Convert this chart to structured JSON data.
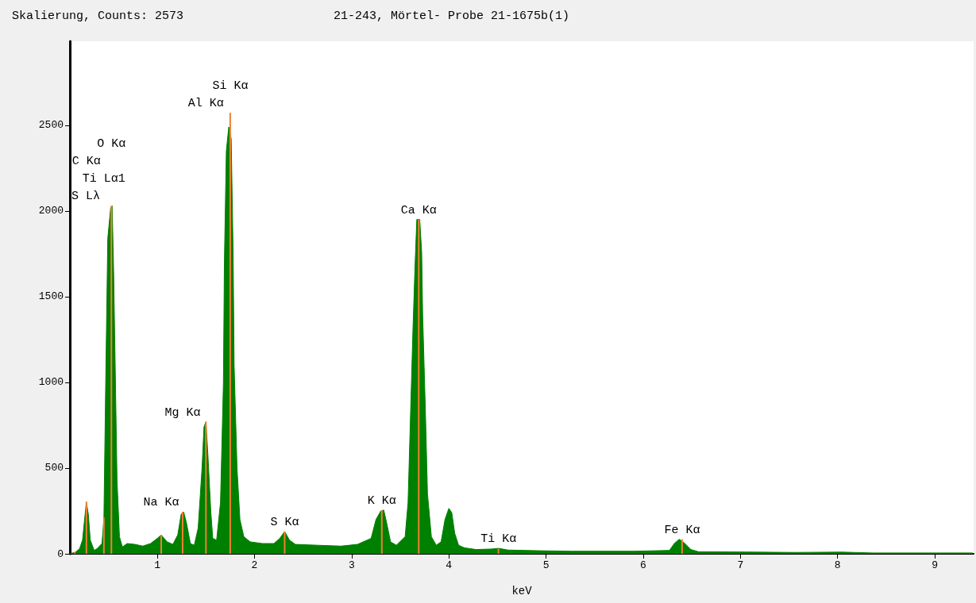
{
  "chart_data": {
    "type": "area",
    "title": "Skalierung, Counts: 2573",
    "subtitle": "21-243, Mörtel- Probe 21-1675b(1)",
    "xlabel": "keV",
    "xlim": [
      0.1,
      9.4
    ],
    "xticks": [
      1,
      2,
      3,
      4,
      5,
      6,
      7,
      8,
      9
    ],
    "ylim": [
      0,
      2990
    ],
    "yticks": [
      0,
      500,
      1000,
      1500,
      2000,
      2500
    ],
    "series": [
      {
        "color": "#008000",
        "x": [
          0.1,
          0.16,
          0.2,
          0.23,
          0.26,
          0.27,
          0.29,
          0.31,
          0.35,
          0.38,
          0.43,
          0.45,
          0.47,
          0.49,
          0.52,
          0.535,
          0.55,
          0.57,
          0.585,
          0.61,
          0.64,
          0.69,
          0.77,
          0.85,
          0.93,
          1.0,
          1.04,
          1.1,
          1.16,
          1.21,
          1.245,
          1.27,
          1.3,
          1.34,
          1.38,
          1.42,
          1.46,
          1.48,
          1.5,
          1.52,
          1.55,
          1.57,
          1.61,
          1.65,
          1.68,
          1.69,
          1.71,
          1.735,
          1.76,
          1.78,
          1.79,
          1.82,
          1.85,
          1.89,
          1.955,
          2.08,
          2.2,
          2.26,
          2.31,
          2.36,
          2.42,
          2.65,
          2.89,
          3.06,
          3.2,
          3.25,
          3.3,
          3.33,
          3.36,
          3.4,
          3.46,
          3.55,
          3.58,
          3.6,
          3.63,
          3.65,
          3.67,
          3.7,
          3.72,
          3.73,
          3.76,
          3.78,
          3.82,
          3.87,
          3.92,
          3.96,
          4.0,
          4.03,
          4.06,
          4.1,
          4.16,
          4.28,
          4.44,
          4.51,
          4.61,
          4.93,
          5.26,
          5.91,
          6.27,
          6.32,
          6.37,
          6.42,
          6.49,
          6.57,
          7.14,
          7.55,
          8.04,
          8.36,
          9.39
        ],
        "values": [
          0,
          10,
          30,
          80,
          250,
          300,
          230,
          80,
          20,
          30,
          60,
          200,
          1050,
          1840,
          2020,
          2030,
          1650,
          960,
          430,
          100,
          40,
          60,
          55,
          45,
          60,
          90,
          110,
          70,
          55,
          110,
          230,
          245,
          180,
          60,
          50,
          150,
          500,
          740,
          770,
          580,
          250,
          90,
          80,
          300,
          1000,
          1700,
          2350,
          2490,
          2420,
          1750,
          1100,
          500,
          200,
          100,
          70,
          60,
          60,
          90,
          130,
          80,
          55,
          50,
          45,
          55,
          90,
          200,
          250,
          255,
          180,
          70,
          50,
          100,
          300,
          700,
          1300,
          1650,
          1950,
          1950,
          1760,
          1400,
          800,
          350,
          100,
          50,
          70,
          200,
          265,
          240,
          120,
          50,
          35,
          25,
          28,
          32,
          22,
          18,
          15,
          15,
          20,
          60,
          85,
          65,
          25,
          12,
          10,
          8,
          10,
          5,
          5
        ]
      },
      {
        "type": "bar",
        "color": "#f08030",
        "x": [
          0.15,
          0.27,
          0.45,
          0.527,
          1.04,
          1.26,
          1.5,
          1.75,
          2.31,
          3.31,
          3.69,
          4.51,
          6.4
        ],
        "values": [
          10,
          305,
          212,
          2030,
          110,
          245,
          770,
          2573,
          130,
          255,
          1950,
          30,
          85
        ]
      }
    ],
    "annotations": [
      "S Lλ",
      "C Kα",
      "Ti Lα1",
      "O Kα",
      "Na Kα",
      "Mg Kα",
      "Al Kα",
      "Si Kα",
      "S Kα",
      "K Kα",
      "Ca Kα",
      "Ti Kα",
      "Fe Kα"
    ]
  }
}
